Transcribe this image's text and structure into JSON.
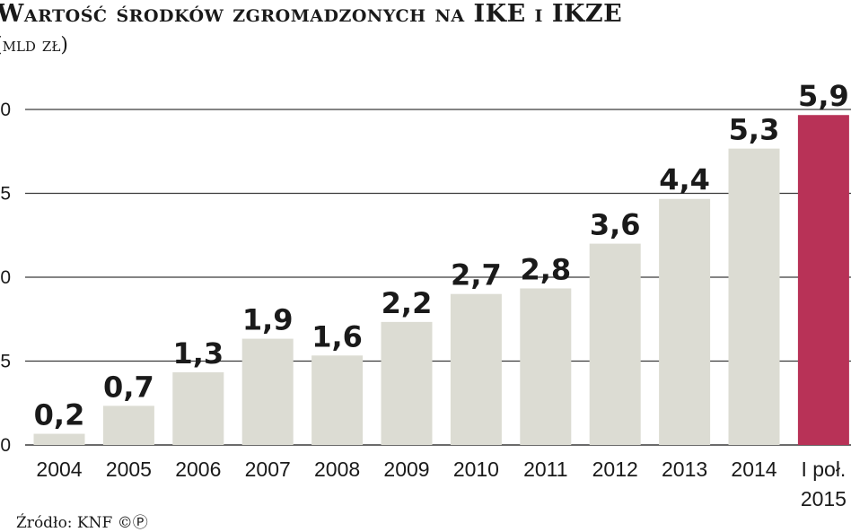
{
  "title": "Wartość środków zgromadzonych na IKE i IKZE",
  "subtitle": "(mld zł)",
  "source": "Źródło: KNF ©Ⓟ",
  "colors": {
    "bar": "#dcdcd3",
    "highlight": "#b83257",
    "grid": "#3a3a3a",
    "text": "#1a1a1a"
  },
  "chart_data": {
    "type": "bar",
    "categories": [
      "2004",
      "2005",
      "2006",
      "2007",
      "2008",
      "2009",
      "2010",
      "2011",
      "2012",
      "2013",
      "2014",
      "I poł. 2015"
    ],
    "values": [
      0.2,
      0.7,
      1.3,
      1.9,
      1.6,
      2.2,
      2.7,
      2.8,
      3.6,
      4.4,
      5.3,
      5.9
    ],
    "data_labels": [
      "0,2",
      "0,7",
      "1,3",
      "1,9",
      "1,6",
      "2,2",
      "2,7",
      "2,8",
      "3,6",
      "4,4",
      "5,3",
      "5,9"
    ],
    "highlight_index": 11,
    "yticks": [
      "0",
      "5",
      "0",
      "5",
      "0"
    ],
    "ylim": [
      0,
      6
    ],
    "grid": true
  }
}
